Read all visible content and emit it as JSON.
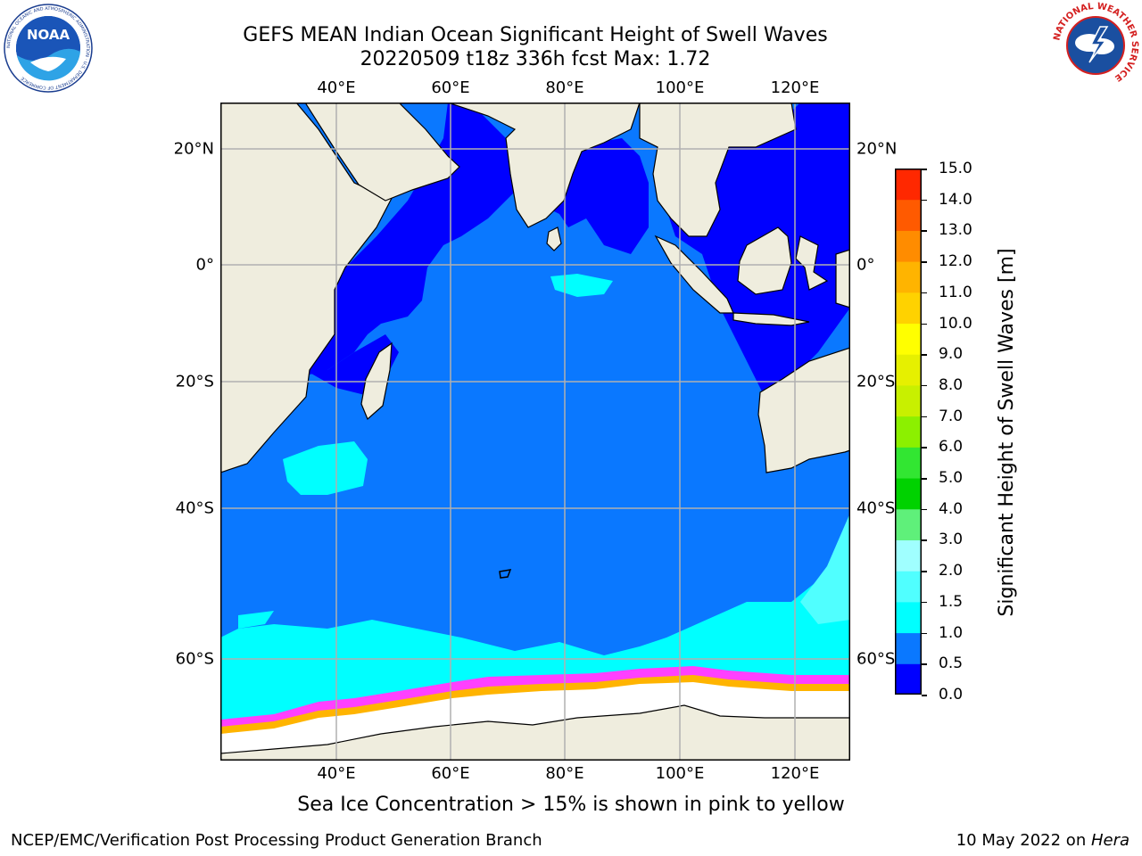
{
  "header": {
    "title_line1": "GEFS MEAN Indian Ocean Significant Height of Swell Waves",
    "title_line2": "20220509 t18z 336h fcst   Max: 1.72"
  },
  "logos": {
    "noaa": {
      "name": "noaa-logo",
      "text": "NOAA",
      "ring_text": "NATIONAL OCEANIC AND ATMOSPHERIC ADMINISTRATION · U.S. DEPARTMENT OF COMMERCE"
    },
    "nws": {
      "name": "nws-logo",
      "ring_text": "NATIONAL WEATHER SERVICE"
    }
  },
  "map": {
    "lon_ticks": [
      "40°E",
      "60°E",
      "80°E",
      "100°E",
      "120°E"
    ],
    "lat_ticks": [
      "20°N",
      "0°",
      "20°S",
      "40°S",
      "60°S"
    ],
    "grid": true,
    "colors": {
      "land": "#efedde",
      "sea_ice": "#ffffff",
      "gridline": "#b0b0b0",
      "coast": "#000000"
    }
  },
  "colorbar": {
    "label": "Significant Height of Swell Waves [m]",
    "ticks": [
      "0.0",
      "0.5",
      "1.0",
      "1.5",
      "2.0",
      "3.0",
      "4.0",
      "5.0",
      "6.0",
      "7.0",
      "8.0",
      "9.0",
      "10.0",
      "11.0",
      "12.0",
      "13.0",
      "14.0",
      "15.0"
    ],
    "colors": [
      "#0000ff",
      "#0a78ff",
      "#00ffff",
      "#50ffff",
      "#a0ffff",
      "#5ff07a",
      "#00d200",
      "#32e632",
      "#8cf000",
      "#c8f000",
      "#e6f000",
      "#ffff00",
      "#ffd200",
      "#ffb400",
      "#ff8c00",
      "#ff5a00",
      "#ff2800",
      "#ff0000"
    ]
  },
  "note": "Sea Ice Concentration > 15% is shown in pink to yellow",
  "footer": {
    "left": "NCEP/EMC/Verification Post Processing Product Generation Branch",
    "date": "10 May 2022 on ",
    "host": "Hera"
  }
}
